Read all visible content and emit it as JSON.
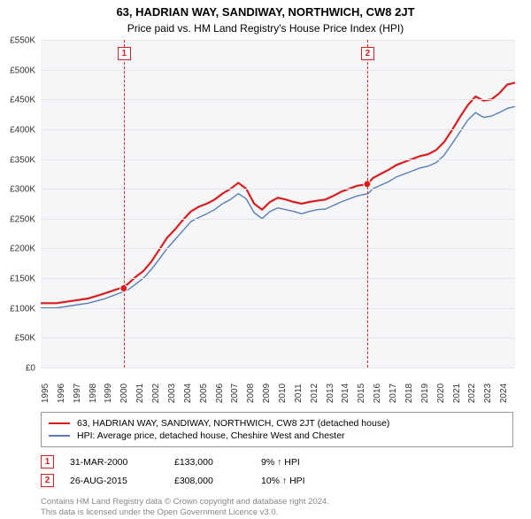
{
  "title": "63, HADRIAN WAY, SANDIWAY, NORTHWICH, CW8 2JT",
  "subtitle": "Price paid vs. HM Land Registry's House Price Index (HPI)",
  "chart": {
    "type": "line",
    "background_color": "#f5f6f8",
    "grid_color": "#e4e6e9",
    "xlim": [
      1995,
      2025
    ],
    "ylim": [
      0,
      550000
    ],
    "ytick_step": 50000,
    "y_ticks": [
      "£0",
      "£50K",
      "£100K",
      "£150K",
      "£200K",
      "£250K",
      "£300K",
      "£350K",
      "£400K",
      "£450K",
      "£500K",
      "£550K"
    ],
    "x_ticks": [
      "1995",
      "1996",
      "1997",
      "1998",
      "1999",
      "2000",
      "2001",
      "2002",
      "2003",
      "2004",
      "2005",
      "2006",
      "2007",
      "2008",
      "2009",
      "2010",
      "2011",
      "2012",
      "2013",
      "2014",
      "2015",
      "2016",
      "2017",
      "2018",
      "2019",
      "2020",
      "2021",
      "2022",
      "2023",
      "2024"
    ],
    "label_fontsize": 10,
    "series": [
      {
        "id": "property",
        "label": "63, HADRIAN WAY, SANDIWAY, NORTHWICH, CW8 2JT (detached house)",
        "color": "#d81e1e",
        "width": 2.2,
        "data": [
          [
            1995,
            108000
          ],
          [
            1996,
            108000
          ],
          [
            1997,
            112000
          ],
          [
            1998,
            116000
          ],
          [
            1999,
            124000
          ],
          [
            2000,
            133000
          ],
          [
            2000.5,
            140000
          ],
          [
            2001,
            152000
          ],
          [
            2001.5,
            162000
          ],
          [
            2002,
            178000
          ],
          [
            2002.5,
            198000
          ],
          [
            2003,
            218000
          ],
          [
            2003.5,
            232000
          ],
          [
            2004,
            248000
          ],
          [
            2004.5,
            262000
          ],
          [
            2005,
            270000
          ],
          [
            2005.5,
            275000
          ],
          [
            2006,
            282000
          ],
          [
            2006.5,
            292000
          ],
          [
            2007,
            300000
          ],
          [
            2007.5,
            310000
          ],
          [
            2008,
            300000
          ],
          [
            2008.5,
            275000
          ],
          [
            2009,
            265000
          ],
          [
            2009.5,
            278000
          ],
          [
            2010,
            285000
          ],
          [
            2010.5,
            282000
          ],
          [
            2011,
            278000
          ],
          [
            2011.5,
            275000
          ],
          [
            2012,
            278000
          ],
          [
            2012.5,
            280000
          ],
          [
            2013,
            282000
          ],
          [
            2013.5,
            288000
          ],
          [
            2014,
            295000
          ],
          [
            2014.5,
            300000
          ],
          [
            2015,
            305000
          ],
          [
            2015.7,
            308000
          ],
          [
            2016,
            318000
          ],
          [
            2016.5,
            325000
          ],
          [
            2017,
            332000
          ],
          [
            2017.5,
            340000
          ],
          [
            2018,
            345000
          ],
          [
            2018.5,
            350000
          ],
          [
            2019,
            355000
          ],
          [
            2019.5,
            358000
          ],
          [
            2020,
            365000
          ],
          [
            2020.5,
            378000
          ],
          [
            2021,
            398000
          ],
          [
            2021.5,
            420000
          ],
          [
            2022,
            440000
          ],
          [
            2022.5,
            455000
          ],
          [
            2023,
            448000
          ],
          [
            2023.5,
            450000
          ],
          [
            2024,
            460000
          ],
          [
            2024.5,
            475000
          ],
          [
            2025,
            478000
          ]
        ]
      },
      {
        "id": "hpi",
        "label": "HPI: Average price, detached house, Cheshire West and Chester",
        "color": "#5a7fb5",
        "width": 1.4,
        "data": [
          [
            1995,
            100000
          ],
          [
            1996,
            100000
          ],
          [
            1997,
            104000
          ],
          [
            1998,
            108000
          ],
          [
            1999,
            115000
          ],
          [
            2000,
            125000
          ],
          [
            2000.5,
            130000
          ],
          [
            2001,
            140000
          ],
          [
            2001.5,
            150000
          ],
          [
            2002,
            165000
          ],
          [
            2002.5,
            182000
          ],
          [
            2003,
            200000
          ],
          [
            2003.5,
            215000
          ],
          [
            2004,
            230000
          ],
          [
            2004.5,
            245000
          ],
          [
            2005,
            252000
          ],
          [
            2005.5,
            258000
          ],
          [
            2006,
            265000
          ],
          [
            2006.5,
            275000
          ],
          [
            2007,
            282000
          ],
          [
            2007.5,
            292000
          ],
          [
            2008,
            283000
          ],
          [
            2008.5,
            260000
          ],
          [
            2009,
            250000
          ],
          [
            2009.5,
            262000
          ],
          [
            2010,
            268000
          ],
          [
            2010.5,
            265000
          ],
          [
            2011,
            262000
          ],
          [
            2011.5,
            258000
          ],
          [
            2012,
            262000
          ],
          [
            2012.5,
            265000
          ],
          [
            2013,
            266000
          ],
          [
            2013.5,
            272000
          ],
          [
            2014,
            278000
          ],
          [
            2014.5,
            283000
          ],
          [
            2015,
            288000
          ],
          [
            2015.7,
            292000
          ],
          [
            2016,
            300000
          ],
          [
            2016.5,
            306000
          ],
          [
            2017,
            312000
          ],
          [
            2017.5,
            320000
          ],
          [
            2018,
            325000
          ],
          [
            2018.5,
            330000
          ],
          [
            2019,
            335000
          ],
          [
            2019.5,
            338000
          ],
          [
            2020,
            344000
          ],
          [
            2020.5,
            356000
          ],
          [
            2021,
            375000
          ],
          [
            2021.5,
            395000
          ],
          [
            2022,
            415000
          ],
          [
            2022.5,
            428000
          ],
          [
            2023,
            420000
          ],
          [
            2023.5,
            422000
          ],
          [
            2024,
            428000
          ],
          [
            2024.5,
            435000
          ],
          [
            2025,
            438000
          ]
        ]
      }
    ],
    "sale_markers": [
      {
        "n": "1",
        "year": 2000.25,
        "price": 133000,
        "color": "#d81e1e"
      },
      {
        "n": "2",
        "year": 2015.65,
        "price": 308000,
        "color": "#d81e1e"
      }
    ]
  },
  "legend": {
    "border_color": "#999999"
  },
  "events": [
    {
      "n": "1",
      "date": "31-MAR-2000",
      "price": "£133,000",
      "delta": "9% ↑ HPI",
      "color": "#d81e1e"
    },
    {
      "n": "2",
      "date": "26-AUG-2015",
      "price": "£308,000",
      "delta": "10% ↑ HPI",
      "color": "#d81e1e"
    }
  ],
  "footer": {
    "line1": "Contains HM Land Registry data © Crown copyright and database right 2024.",
    "line2": "This data is licensed under the Open Government Licence v3.0."
  }
}
